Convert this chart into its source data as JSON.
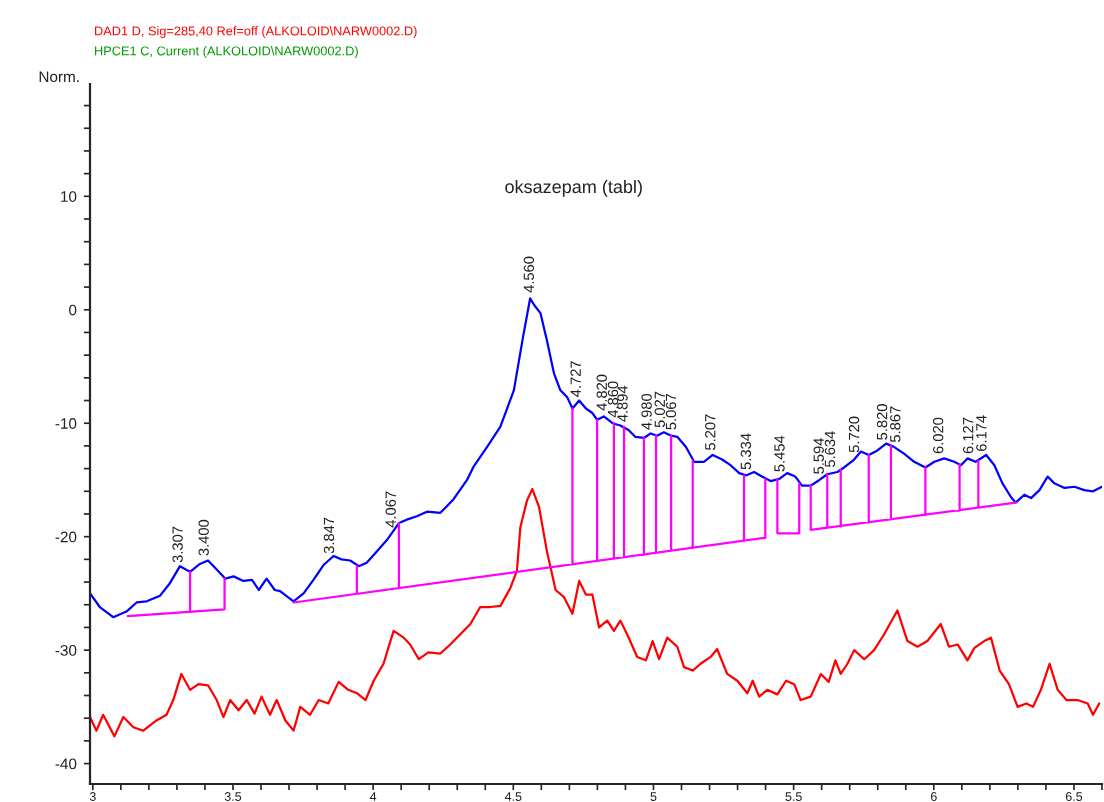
{
  "chart_data": {
    "type": "line",
    "title": "oksazepam (tabl)",
    "ylabel": "Norm.",
    "xlim": [
      2.99,
      6.6
    ],
    "ylim": [
      -41.8,
      19.9
    ],
    "xticks": [
      3,
      {
        "value": 3.1,
        "label": null
      },
      {
        "value": 3.2,
        "label": null
      },
      {
        "value": 3.3,
        "label": null
      },
      {
        "value": 3.4,
        "label": null
      },
      3.5,
      {
        "value": 3.6,
        "label": null
      },
      {
        "value": 3.7,
        "label": null
      },
      {
        "value": 3.8,
        "label": null
      },
      {
        "value": 3.9,
        "label": null
      },
      4,
      {
        "value": 4.1,
        "label": null
      },
      {
        "value": 4.2,
        "label": null
      },
      {
        "value": 4.3,
        "label": null
      },
      {
        "value": 4.4,
        "label": null
      },
      4.5,
      {
        "value": 4.6,
        "label": null
      },
      {
        "value": 4.7,
        "label": null
      },
      {
        "value": 4.8,
        "label": null
      },
      {
        "value": 4.9,
        "label": null
      },
      5,
      {
        "value": 5.1,
        "label": null
      },
      {
        "value": 5.2,
        "label": null
      },
      {
        "value": 5.3,
        "label": null
      },
      {
        "value": 5.4,
        "label": null
      },
      5.5,
      {
        "value": 5.6,
        "label": null
      },
      {
        "value": 5.7,
        "label": null
      },
      {
        "value": 5.8,
        "label": null
      },
      {
        "value": 5.9,
        "label": null
      },
      6,
      {
        "value": 6.1,
        "label": null
      },
      {
        "value": 6.2,
        "label": null
      },
      {
        "value": 6.3,
        "label": null
      },
      {
        "value": 6.4,
        "label": null
      },
      6.5,
      {
        "value": 6.6,
        "label": null
      }
    ],
    "yticks": [
      -40,
      {
        "value": -38,
        "label": null
      },
      {
        "value": -36,
        "label": null
      },
      {
        "value": -34,
        "label": null
      },
      {
        "value": -32,
        "label": null
      },
      -30,
      {
        "value": -28,
        "label": null
      },
      {
        "value": -26,
        "label": null
      },
      {
        "value": -24,
        "label": null
      },
      {
        "value": -22,
        "label": null
      },
      -20,
      {
        "value": -18,
        "label": null
      },
      {
        "value": -16,
        "label": null
      },
      {
        "value": -14,
        "label": null
      },
      {
        "value": -12,
        "label": null
      },
      -10,
      {
        "value": -8,
        "label": null
      },
      {
        "value": -6,
        "label": null
      },
      {
        "value": -4,
        "label": null
      },
      {
        "value": -2,
        "label": null
      },
      0,
      {
        "value": 2,
        "label": null
      },
      {
        "value": 4,
        "label": null
      },
      {
        "value": 6,
        "label": null
      },
      {
        "value": 8,
        "label": null
      },
      10,
      {
        "value": 12,
        "label": null
      },
      {
        "value": 14,
        "label": null
      },
      {
        "value": 16,
        "label": null
      },
      {
        "value": 18,
        "label": null
      }
    ],
    "series": [
      {
        "color": "#0000ff",
        "x": [
          2.99,
          3.025,
          3.073,
          3.12,
          3.156,
          3.192,
          3.24,
          3.275,
          3.311,
          3.347,
          3.382,
          3.411,
          3.442,
          3.473,
          3.502,
          3.537,
          3.568,
          3.592,
          3.62,
          3.649,
          3.668,
          3.716,
          3.752,
          3.787,
          3.823,
          3.859,
          3.887,
          3.918,
          3.949,
          3.977,
          4.013,
          4.049,
          4.092,
          4.12,
          4.156,
          4.192,
          4.24,
          4.287,
          4.335,
          4.359,
          4.406,
          4.454,
          4.502,
          4.534,
          4.56,
          4.575,
          4.597,
          4.62,
          4.645,
          4.668,
          4.692,
          4.711,
          4.735,
          4.759,
          4.782,
          4.799,
          4.823,
          4.854,
          4.882,
          4.911,
          4.935,
          4.966,
          4.99,
          5.013,
          5.037,
          5.063,
          5.085,
          5.116,
          5.145,
          5.18,
          5.211,
          5.245,
          5.275,
          5.306,
          5.33,
          5.359,
          5.387,
          5.418,
          5.449,
          5.477,
          5.506,
          5.53,
          5.561,
          5.592,
          5.62,
          5.656,
          5.68,
          5.716,
          5.74,
          5.768,
          5.799,
          5.83,
          5.859,
          5.895,
          5.93,
          5.97,
          6.002,
          6.037,
          6.073,
          6.097,
          6.12,
          6.149,
          6.187,
          6.216,
          6.245,
          6.275,
          6.292,
          6.323,
          6.347,
          6.377,
          6.406,
          6.43,
          6.466,
          6.502,
          6.537,
          6.568,
          6.6
        ],
        "values": [
          -25.0,
          -26.2,
          -27.1,
          -26.6,
          -25.8,
          -25.7,
          -25.2,
          -24.1,
          -22.6,
          -23.1,
          -22.4,
          -22.1,
          -22.9,
          -23.7,
          -23.5,
          -23.9,
          -23.8,
          -24.7,
          -23.7,
          -24.7,
          -24.8,
          -25.7,
          -25.0,
          -23.8,
          -22.5,
          -21.7,
          -22.0,
          -22.1,
          -22.6,
          -22.3,
          -21.3,
          -20.3,
          -18.8,
          -18.5,
          -18.2,
          -17.8,
          -17.9,
          -16.7,
          -15.0,
          -13.8,
          -12.1,
          -10.3,
          -7.1,
          -2.5,
          1.0,
          0.4,
          -0.3,
          -2.7,
          -5.6,
          -7.1,
          -7.7,
          -8.7,
          -8.0,
          -8.7,
          -9.1,
          -9.7,
          -9.4,
          -10.0,
          -10.2,
          -10.6,
          -11.2,
          -11.3,
          -10.9,
          -11.1,
          -10.8,
          -11.1,
          -11.2,
          -12.1,
          -13.4,
          -13.4,
          -12.8,
          -13.2,
          -13.7,
          -14.4,
          -14.6,
          -14.3,
          -14.7,
          -15.1,
          -14.9,
          -14.4,
          -14.7,
          -15.5,
          -15.5,
          -15.0,
          -14.5,
          -14.3,
          -13.9,
          -13.2,
          -12.5,
          -12.8,
          -12.4,
          -11.8,
          -12.1,
          -12.7,
          -13.4,
          -13.9,
          -13.4,
          -13.1,
          -13.4,
          -13.7,
          -13.1,
          -13.4,
          -12.8,
          -13.7,
          -15.3,
          -16.5,
          -17.0,
          -16.3,
          -16.6,
          -15.9,
          -14.7,
          -15.3,
          -15.7,
          -15.6,
          -15.9,
          -16.0,
          -15.6
        ]
      },
      {
        "name": "DAD1 D, Sig=285,40 Ref=off (ALKOLOID\\NARW0002.D)",
        "color": "#ff0000",
        "x": [
          2.99,
          3.013,
          3.037,
          3.077,
          3.109,
          3.145,
          3.18,
          3.227,
          3.263,
          3.287,
          3.316,
          3.347,
          3.377,
          3.411,
          3.442,
          3.466,
          3.49,
          3.52,
          3.549,
          3.577,
          3.602,
          3.632,
          3.656,
          3.687,
          3.716,
          3.74,
          3.775,
          3.806,
          3.84,
          3.877,
          3.911,
          3.942,
          3.973,
          4.002,
          4.037,
          4.073,
          4.109,
          4.132,
          4.163,
          4.197,
          4.24,
          4.275,
          4.311,
          4.347,
          4.382,
          4.418,
          4.454,
          4.49,
          4.513,
          4.525,
          4.549,
          4.568,
          4.592,
          4.62,
          4.651,
          4.68,
          4.711,
          4.735,
          4.759,
          4.782,
          4.806,
          4.835,
          4.859,
          4.882,
          4.906,
          4.942,
          4.973,
          4.997,
          5.02,
          5.049,
          5.085,
          5.109,
          5.14,
          5.168,
          5.204,
          5.227,
          5.263,
          5.299,
          5.335,
          5.354,
          5.377,
          5.406,
          5.442,
          5.473,
          5.502,
          5.525,
          5.561,
          5.597,
          5.625,
          5.649,
          5.668,
          5.692,
          5.716,
          5.752,
          5.787,
          5.823,
          5.87,
          5.906,
          5.942,
          5.977,
          6.025,
          6.054,
          6.085,
          6.12,
          6.145,
          6.18,
          6.204,
          6.235,
          6.268,
          6.299,
          6.33,
          6.354,
          6.382,
          6.413,
          6.442,
          6.473,
          6.513,
          6.549,
          6.568,
          6.59
        ],
        "values": [
          -35.9,
          -37.1,
          -35.7,
          -37.6,
          -35.9,
          -36.8,
          -37.1,
          -36.2,
          -35.7,
          -34.4,
          -32.1,
          -33.5,
          -33.0,
          -33.1,
          -34.4,
          -35.9,
          -34.4,
          -35.3,
          -34.4,
          -35.6,
          -34.1,
          -35.7,
          -34.4,
          -36.2,
          -37.1,
          -35.0,
          -35.7,
          -34.4,
          -34.7,
          -32.8,
          -33.5,
          -33.8,
          -34.4,
          -32.7,
          -31.2,
          -28.3,
          -28.9,
          -29.5,
          -30.8,
          -30.2,
          -30.3,
          -29.5,
          -28.6,
          -27.7,
          -26.2,
          -26.2,
          -26.1,
          -24.5,
          -23.0,
          -19.2,
          -16.8,
          -15.8,
          -17.4,
          -21.3,
          -24.7,
          -25.3,
          -26.8,
          -23.9,
          -25.1,
          -25.1,
          -28.0,
          -27.4,
          -28.3,
          -27.4,
          -28.6,
          -30.6,
          -30.9,
          -29.2,
          -30.8,
          -28.9,
          -29.7,
          -31.5,
          -31.8,
          -31.2,
          -30.6,
          -29.9,
          -32.1,
          -32.7,
          -33.8,
          -32.7,
          -34.1,
          -33.5,
          -33.9,
          -32.7,
          -33.0,
          -34.4,
          -34.1,
          -32.1,
          -32.8,
          -30.9,
          -32.1,
          -31.2,
          -30.0,
          -30.8,
          -30.0,
          -28.6,
          -26.5,
          -29.2,
          -29.7,
          -29.2,
          -27.7,
          -29.7,
          -29.5,
          -30.9,
          -29.8,
          -29.2,
          -28.9,
          -31.8,
          -33.0,
          -35.0,
          -34.7,
          -35.0,
          -33.5,
          -31.2,
          -33.5,
          -34.4,
          -34.4,
          -34.7,
          -35.7,
          -34.7
        ]
      },
      {
        "color": "#ff00ff",
        "x": [
          3.125,
          3.47,
          3.47,
          null,
          3.347,
          3.347,
          null,
          3.716,
          5.399,
          5.399,
          null,
          3.942,
          3.942,
          null,
          4.092,
          4.092,
          null,
          4.711,
          4.711,
          null,
          4.799,
          4.799,
          null,
          4.859,
          4.859,
          null,
          4.895,
          4.895,
          null,
          4.966,
          4.966,
          null,
          5.009,
          5.009,
          null,
          5.063,
          5.063,
          null,
          5.14,
          5.14,
          null,
          5.323,
          5.323,
          null,
          5.442,
          5.442,
          5.52,
          5.52,
          null,
          5.561,
          5.561,
          6.292,
          null,
          5.62,
          5.62,
          null,
          5.668,
          5.668,
          null,
          5.768,
          5.768,
          null,
          5.847,
          5.847,
          null,
          5.97,
          5.97,
          null,
          6.092,
          6.092,
          null,
          6.159,
          6.159
        ],
        "values": [
          -27.0,
          -26.4,
          -23.7,
          null,
          -26.6,
          -23.1,
          null,
          -25.8,
          -20.1,
          -14.9,
          null,
          -25.0,
          -22.6,
          null,
          -24.5,
          -18.8,
          null,
          -22.4,
          -8.7,
          null,
          -22.1,
          -9.7,
          null,
          -21.9,
          -10.0,
          null,
          -21.8,
          -10.3,
          null,
          -21.6,
          -11.3,
          null,
          -21.4,
          -11.1,
          null,
          -21.2,
          -11.1,
          null,
          -21.0,
          -13.3,
          null,
          -20.4,
          -14.6,
          null,
          -14.9,
          -19.7,
          -19.7,
          -15.3,
          null,
          -15.5,
          -19.4,
          -17.0,
          null,
          -19.2,
          -14.5,
          null,
          -19.1,
          -14.1,
          null,
          -18.7,
          -12.8,
          null,
          -18.5,
          -12.0,
          null,
          -18.1,
          -13.9,
          null,
          -17.7,
          -13.6,
          null,
          -17.4,
          -13.3
        ]
      }
    ],
    "annotations": [
      "HPCE1 C, Current (ALKOLOID\\NARW0002.D)",
      {
        "text": "3.307",
        "x": 3.307,
        "y": -22.8
      },
      {
        "text": "3.400",
        "x": 3.4,
        "y": -22.2
      },
      {
        "text": "3.847",
        "x": 3.847,
        "y": -22.0
      },
      {
        "text": "4.067",
        "x": 4.067,
        "y": -19.7
      },
      {
        "text": "4.560",
        "x": 4.56,
        "y": 1.0
      },
      {
        "text": "4.727",
        "x": 4.727,
        "y": -8.2
      },
      {
        "text": "4.820",
        "x": 4.82,
        "y": -9.4
      },
      {
        "text": "4.860",
        "x": 4.86,
        "y": -10.0
      },
      {
        "text": "4.894",
        "x": 4.894,
        "y": -10.4
      },
      {
        "text": "4.980",
        "x": 4.98,
        "y": -11.1
      },
      {
        "text": "5.027",
        "x": 5.027,
        "y": -10.9
      },
      {
        "text": "5.067",
        "x": 5.067,
        "y": -11.1
      },
      {
        "text": "5.207",
        "x": 5.207,
        "y": -12.9
      },
      {
        "text": "5.334",
        "x": 5.334,
        "y": -14.6
      },
      {
        "text": "5.454",
        "x": 5.454,
        "y": -14.8
      },
      {
        "text": "5.594",
        "x": 5.594,
        "y": -15.0
      },
      {
        "text": "5.634",
        "x": 5.634,
        "y": -14.4
      },
      {
        "text": "5.720",
        "x": 5.72,
        "y": -13.1
      },
      {
        "text": "5.820",
        "x": 5.82,
        "y": -12.0
      },
      {
        "text": "5.867",
        "x": 5.867,
        "y": -12.2
      },
      {
        "text": "6.020",
        "x": 6.02,
        "y": -13.2
      },
      {
        "text": "6.127",
        "x": 6.127,
        "y": -13.2
      },
      {
        "text": "6.174",
        "x": 6.174,
        "y": -13.0
      }
    ]
  }
}
